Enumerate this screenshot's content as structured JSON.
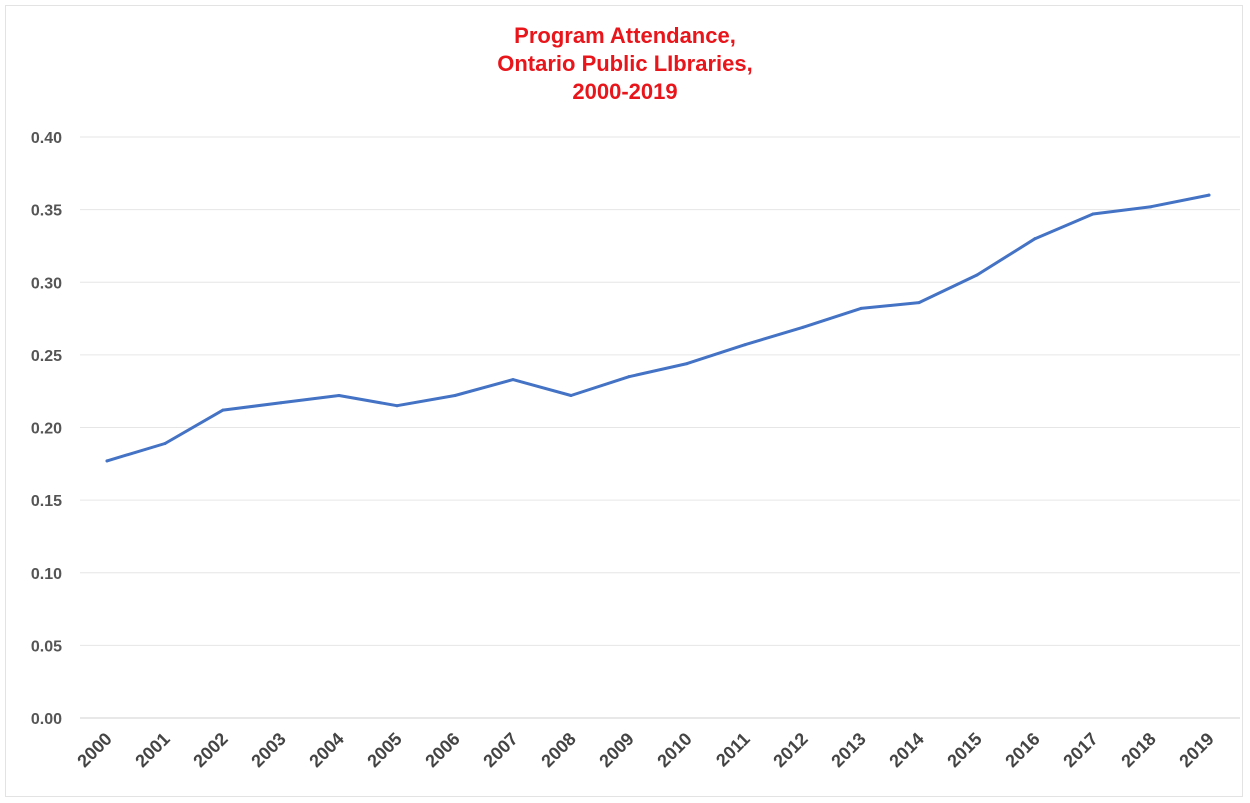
{
  "chart_data": {
    "type": "line",
    "title_lines": [
      "Program Attendance,",
      "Ontario Public LIbraries,",
      "2000-2019"
    ],
    "categories": [
      "2000",
      "2001",
      "2002",
      "2003",
      "2004",
      "2005",
      "2006",
      "2007",
      "2008",
      "2009",
      "2010",
      "2011",
      "2012",
      "2013",
      "2014",
      "2015",
      "2016",
      "2017",
      "2018",
      "2019"
    ],
    "series": [
      {
        "values": [
          0.177,
          0.189,
          0.212,
          0.217,
          0.222,
          0.215,
          0.222,
          0.233,
          0.222,
          0.235,
          0.244,
          0.257,
          0.269,
          0.282,
          0.286,
          0.305,
          0.33,
          0.347,
          0.352,
          0.36
        ]
      }
    ],
    "y_ticks": [
      "0.00",
      "0.05",
      "0.10",
      "0.15",
      "0.20",
      "0.25",
      "0.30",
      "0.35",
      "0.40"
    ],
    "ylim": [
      0,
      0.4
    ],
    "xlabel": "",
    "ylabel": "",
    "grid": true,
    "legend": "none",
    "colors": {
      "line": "#4472c4",
      "title": "#e8151b",
      "grid": "#e6e6e6"
    }
  }
}
